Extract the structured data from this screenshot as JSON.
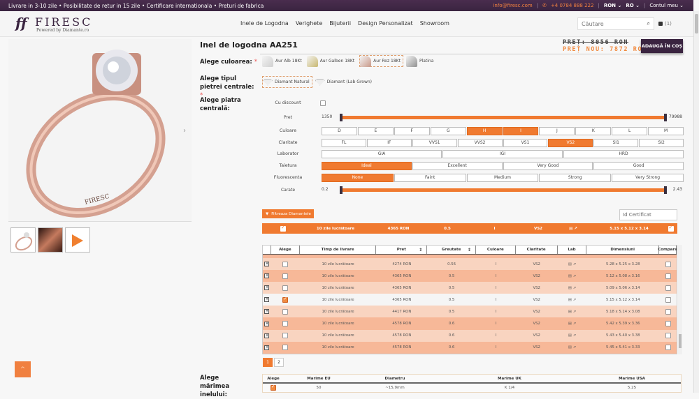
{
  "topbar": {
    "promo": "Livrare in 3-10 zile • Posibilitate de retur in 15 zile • Certificare internationala • Preturi de fabrica",
    "email": "info@firesc.com",
    "phone": "+4 0784 888 222",
    "currency": "RON",
    "language": "RO",
    "account": "Contul meu"
  },
  "header": {
    "logo_mark": "ff",
    "logo_name": "FIRESC",
    "logo_sub": "Powered by Diamante.ro",
    "nav": [
      "Inele de Logodna",
      "Verighete",
      "Bijuterii",
      "Design Personalizat",
      "Showroom"
    ],
    "search_placeholder": "Căutare",
    "cart_count": "(1)"
  },
  "product": {
    "title": "Inel de logodna AA251",
    "price_old": "PREȚ: 8056 RON",
    "price_new": "PREȚ NOU: 7872 RON",
    "add_to_cart": "ADAUGĂ ÎN COȘ",
    "engraving": "FIRESC"
  },
  "options": {
    "color_label": "Alege culoarea:",
    "colors": [
      {
        "label": "Aur Alb 18Kt",
        "color": "#d8d8d8",
        "selected": false
      },
      {
        "label": "Aur Galben 18Kt",
        "color": "#c8b870",
        "selected": false
      },
      {
        "label": "Aur Roz 18Kt",
        "color": "#c89888",
        "selected": true
      },
      {
        "label": "Platina",
        "color": "#a0a0a0",
        "selected": false
      }
    ],
    "stone_type_label": "Alege tipul pietrei centrale:",
    "stone_types": [
      {
        "label": "Diamant Natural",
        "selected": true
      },
      {
        "label": "Diamant (Lab Grown)",
        "selected": false
      }
    ],
    "center_stone_label": "Alege piatra centrală:",
    "ring_size_label": "Alege mărimea inelului:",
    "required_mark": "*"
  },
  "filters": {
    "discount_label": "Cu discount",
    "price": {
      "label": "Pret",
      "min": "1350",
      "max": "79988"
    },
    "color": {
      "label": "Culoare",
      "values": [
        "D",
        "E",
        "F",
        "G",
        "H",
        "I",
        "J",
        "K",
        "L",
        "M"
      ],
      "selected": [
        "H",
        "I"
      ]
    },
    "clarity": {
      "label": "Claritate",
      "values": [
        "FL",
        "IF",
        "VVS1",
        "VVS2",
        "VS1",
        "VS2",
        "SI1",
        "SI2"
      ],
      "selected": [
        "VS2"
      ]
    },
    "lab": {
      "label": "Laborator",
      "values": [
        "GIA",
        "IGI",
        "HRD"
      ],
      "selected": []
    },
    "cut": {
      "label": "Taietura",
      "values": [
        "Ideal",
        "Excellent",
        "Very Good",
        "Good"
      ],
      "selected": [
        "Ideal"
      ]
    },
    "fluorescence": {
      "label": "Fluorescenta",
      "values": [
        "None",
        "Faint",
        "Medium",
        "Strong",
        "Very Strong"
      ],
      "selected": [
        "None"
      ]
    },
    "carat": {
      "label": "Carate",
      "min": "0.2",
      "max": "2.43"
    },
    "filter_button": "Filtreaza Diamantele",
    "cert_placeholder": "Id Certificat"
  },
  "selected_diamond": {
    "delivery": "10 zile lucrătoare",
    "price": "4365 RON",
    "weight": "0.5",
    "color": "I",
    "clarity": "VS2",
    "lab": "IGI",
    "dimensions": "5.15 x 5.12 x 3.14"
  },
  "diamond_table": {
    "headers": [
      "Alege",
      "Timp de livrare",
      "Pret",
      "Greutate",
      "Culoare",
      "Claritate",
      "Lab",
      "Dimensiuni",
      "Compara"
    ],
    "subrow": {
      "left": "Simetrie:",
      "mid": "Fluorescenta:"
    },
    "rows": [
      {
        "delivery": "10 zile lucrătoare",
        "price": "4274 RON",
        "weight": "0.56",
        "color": "I",
        "clarity": "VS2",
        "lab": "IGI",
        "dimensions": "5.28 x 5.25 x 3.28",
        "selected": false
      },
      {
        "delivery": "10 zile lucrătoare",
        "price": "4365 RON",
        "weight": "0.5",
        "color": "I",
        "clarity": "VS2",
        "lab": "IGI",
        "dimensions": "5.12 x 5.08 x 3.16",
        "selected": false
      },
      {
        "delivery": "10 zile lucrătoare",
        "price": "4365 RON",
        "weight": "0.5",
        "color": "I",
        "clarity": "VS2",
        "lab": "IGI",
        "dimensions": "5.09 x 5.06 x 3.14",
        "selected": false
      },
      {
        "delivery": "10 zile lucrătoare",
        "price": "4365 RON",
        "weight": "0.5",
        "color": "I",
        "clarity": "VS2",
        "lab": "IGI",
        "dimensions": "5.15 x 5.12 x 3.14",
        "selected": true
      },
      {
        "delivery": "10 zile lucrătoare",
        "price": "4417 RON",
        "weight": "0.5",
        "color": "I",
        "clarity": "VS2",
        "lab": "IGI",
        "dimensions": "5.18 x 5.14 x 3.08",
        "selected": false
      },
      {
        "delivery": "10 zile lucrătoare",
        "price": "4578 RON",
        "weight": "0.6",
        "color": "I",
        "clarity": "VS2",
        "lab": "IGI",
        "dimensions": "5.42 x 5.39 x 3.36",
        "selected": false
      },
      {
        "delivery": "10 zile lucrătoare",
        "price": "4578 RON",
        "weight": "0.6",
        "color": "I",
        "clarity": "VS2",
        "lab": "IGI",
        "dimensions": "5.43 x 5.40 x 3.38",
        "selected": false
      },
      {
        "delivery": "10 zile lucrătoare",
        "price": "4578 RON",
        "weight": "0.6",
        "color": "I",
        "clarity": "VS2",
        "lab": "IGI",
        "dimensions": "5.45 x 5.41 x 3.33",
        "selected": false
      }
    ],
    "pages": [
      "1",
      "2"
    ],
    "current_page": "1"
  },
  "size_table": {
    "headers": [
      "Alege",
      "Marime EU",
      "Diametru",
      "Marime UK",
      "Marime USA"
    ],
    "rows": [
      {
        "eu": "50",
        "diameter": "~15,9mm",
        "uk": "K 1/4",
        "usa": "5.25",
        "selected": true
      }
    ]
  },
  "colors": {
    "accent": "#f07a30",
    "brand": "#3a2440",
    "row_light": "#f9d4c0",
    "row_dark": "#f7b898"
  }
}
